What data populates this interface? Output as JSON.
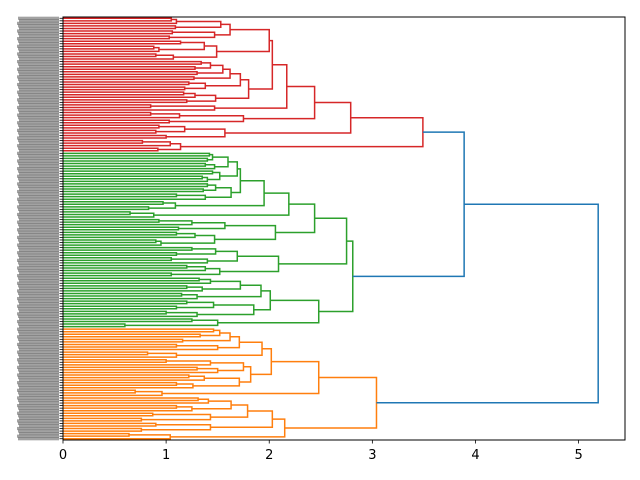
{
  "chart_data": {
    "type": "dendrogram",
    "orientation": "left",
    "title": "",
    "xlabel": "",
    "ylabel": "",
    "xlim": [
      0,
      5.45
    ],
    "xticks": [
      "0",
      "1",
      "2",
      "3",
      "4",
      "5"
    ],
    "grid": false,
    "color_threshold": 3.63,
    "above_threshold_color": "#1f77b4",
    "cluster_colors": [
      "#d62728",
      "#2ca02c",
      "#ff7f0e"
    ],
    "leaf_label_color": "#555555",
    "tree": [
      5.19,
      [
        3.89,
        [
          3.49,
          [
            2.79,
            [
              2.44,
              [
                2.17,
                [
                  2.03,
                  [
                    2.0,
                    [
                      1.62,
                      [
                        1.53,
                        [
                          1.1,
                          [
                            1.05,
                            0,
                            0
                          ],
                          0
                        ],
                        [
                          1.09,
                          0,
                          0
                        ]
                      ],
                      [
                        1.47,
                        [
                          1.06,
                          0,
                          0
                        ],
                        [
                          1.03,
                          0,
                          0
                        ]
                      ]
                    ],
                    [
                      1.49,
                      [
                        1.37,
                        [
                          1.14,
                          0,
                          0
                        ],
                        [
                          0.93,
                          [
                            0.88,
                            0,
                            0
                          ],
                          0
                        ]
                      ],
                      [
                        1.07,
                        [
                          0.9,
                          0,
                          0
                        ],
                        0
                      ]
                    ]
                  ],
                  [
                    1.8,
                    [
                      1.72,
                      [
                        1.62,
                        [
                          1.55,
                          [
                            1.43,
                            [
                              1.34,
                              0,
                              0
                            ],
                            [
                              1.28,
                              0,
                              0
                            ]
                          ],
                          [
                            1.3,
                            0,
                            0
                          ]
                        ],
                        [
                          1.27,
                          0,
                          0
                        ]
                      ],
                      [
                        1.38,
                        [
                          1.22,
                          0,
                          0
                        ],
                        [
                          1.18,
                          0,
                          0
                        ]
                      ]
                    ],
                    [
                      1.48,
                      [
                        1.28,
                        [
                          1.17,
                          0,
                          0
                        ],
                        0
                      ],
                      [
                        1.2,
                        0,
                        0
                      ]
                    ]
                  ]
                ],
                [
                  1.47,
                  [
                    0.85,
                    0,
                    0
                  ],
                  0
                ]
              ],
              [
                1.75,
                [
                  1.13,
                  [
                    0.85,
                    0,
                    0
                  ],
                  0
                ],
                [
                  1.03,
                  0,
                  0
                ]
              ]
            ],
            [
              1.57,
              [
                1.18,
                [
                  0.93,
                  0,
                  0
                ],
                [
                  0.9,
                  0,
                  0
                ]
              ],
              [
                1.0,
                0,
                0
              ]
            ]
          ],
          [
            1.14,
            [
              1.04,
              [
                0.77,
                0,
                0
              ],
              0
            ],
            [
              0.92,
              0,
              0
            ]
          ]
        ],
        [
          2.81,
          [
            2.75,
            [
              2.44,
              [
                2.19,
                [
                  1.95,
                  [
                    1.72,
                    [
                      1.69,
                      [
                        1.6,
                        [
                          1.45,
                          [
                            1.42,
                            0,
                            0
                          ],
                          [
                            1.4,
                            0,
                            0
                          ]
                        ],
                        [
                          1.47,
                          [
                            1.38,
                            0,
                            0
                          ],
                          0
                        ]
                      ],
                      [
                        1.52,
                        [
                          1.45,
                          0,
                          0
                        ],
                        [
                          1.4,
                          [
                            1.35,
                            0,
                            0
                          ],
                          0
                        ]
                      ]
                    ],
                    [
                      1.63,
                      [
                        1.48,
                        [
                          1.4,
                          0,
                          0
                        ],
                        [
                          1.36,
                          0,
                          0
                        ]
                      ],
                      [
                        1.38,
                        [
                          1.1,
                          0,
                          0
                        ],
                        0
                      ]
                    ]
                  ],
                  [
                    1.09,
                    [
                      0.97,
                      0,
                      0
                    ],
                    [
                      0.83,
                      0,
                      0
                    ]
                  ]
                ],
                [
                  0.88,
                  [
                    0.65,
                    0,
                    0
                  ],
                  0
                ]
              ],
              [
                2.06,
                [
                  1.57,
                  [
                    1.25,
                    [
                      0.93,
                      0,
                      0
                    ],
                    0
                  ],
                  [
                    1.12,
                    0,
                    0
                  ]
                ],
                [
                  1.47,
                  [
                    1.28,
                    [
                      1.1,
                      0,
                      0
                    ],
                    0
                  ],
                  [
                    0.95,
                    [
                      0.9,
                      0,
                      0
                    ],
                    0
                  ]
                ]
              ]
            ],
            [
              2.09,
              [
                1.69,
                [
                  1.48,
                  [
                    1.25,
                    0,
                    0
                  ],
                  [
                    1.1,
                    0,
                    0
                  ]
                ],
                [
                  1.4,
                  [
                    1.05,
                    0,
                    0
                  ],
                  0
                ]
              ],
              [
                1.52,
                [
                  1.38,
                  [
                    1.2,
                    0,
                    0
                  ],
                  0
                ],
                [
                  1.05,
                  0,
                  0
                ]
              ]
            ]
          ],
          [
            2.48,
            [
              2.01,
              [
                1.92,
                [
                  1.72,
                  [
                    1.43,
                    [
                      1.32,
                      0,
                      0
                    ],
                    0
                  ],
                  [
                    1.35,
                    [
                      1.2,
                      0,
                      0
                    ],
                    0
                  ]
                ],
                [
                  1.3,
                  [
                    1.15,
                    0,
                    0
                  ],
                  0
                ]
              ],
              [
                1.85,
                [
                  1.46,
                  [
                    1.2,
                    0,
                    0
                  ],
                  [
                    1.1,
                    0,
                    0
                  ]
                ],
                [
                  1.3,
                  [
                    1.0,
                    0,
                    0
                  ],
                  0
                ]
              ]
            ],
            [
              1.5,
              [
                1.25,
                0,
                0
              ],
              [
                0.6,
                0,
                0
              ]
            ]
          ]
        ]
      ],
      [
        3.04,
        [
          2.48,
          [
            2.02,
            [
              1.93,
              [
                1.71,
                [
                  1.62,
                  [
                    1.52,
                    [
                      1.46,
                      0,
                      0
                    ],
                    [
                      1.33,
                      0,
                      0
                    ]
                  ],
                  [
                    1.16,
                    0,
                    0
                  ]
                ],
                [
                  1.5,
                  [
                    1.1,
                    0,
                    0
                  ],
                  0
                ]
              ],
              [
                1.1,
                [
                  0.82,
                  0,
                  0
                ],
                0
              ]
            ],
            [
              1.82,
              [
                1.75,
                [
                  1.43,
                  [
                    1.0,
                    0,
                    0
                  ],
                  0
                ],
                [
                  1.5,
                  [
                    1.3,
                    0,
                    0
                  ],
                  0
                ]
              ],
              [
                1.71,
                [
                  1.37,
                  [
                    1.22,
                    0,
                    0
                  ],
                  0
                ],
                [
                  1.26,
                  [
                    1.1,
                    0,
                    0
                  ],
                  0
                ]
              ]
            ]
          ],
          [
            0.96,
            [
              0.7,
              0,
              0
            ],
            0
          ]
        ],
        [
          2.15,
          [
            2.03,
            [
              1.79,
              [
                1.63,
                [
                  1.41,
                  [
                    1.31,
                    0,
                    0
                  ],
                  0
                ],
                [
                  1.25,
                  [
                    1.1,
                    0,
                    0
                  ],
                  0
                ]
              ],
              [
                1.43,
                [
                  0.87,
                  0,
                  0
                ],
                [
                  0.76,
                  0,
                  0
                ]
              ]
            ],
            [
              1.43,
              [
                0.9,
                0,
                0
              ],
              [
                0.76,
                0,
                0
              ]
            ]
          ],
          [
            1.04,
            [
              0.64,
              0,
              0
            ],
            0
          ]
        ]
      ]
    ]
  }
}
